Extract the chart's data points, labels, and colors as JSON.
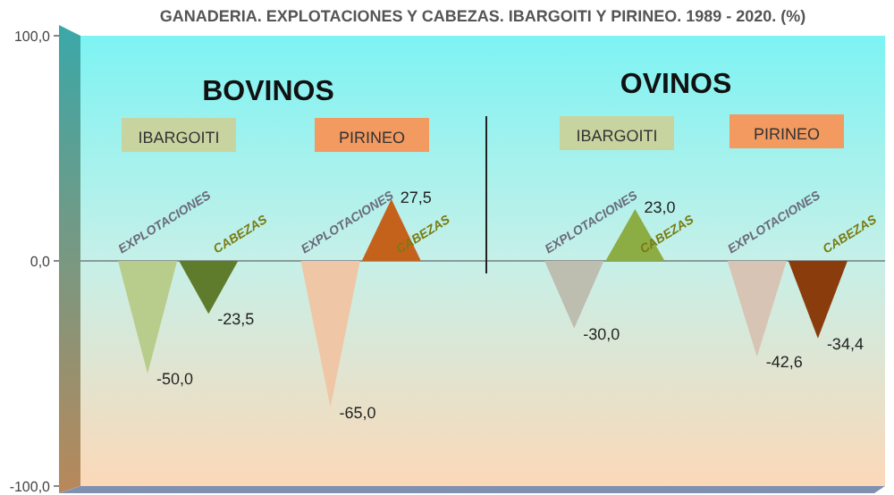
{
  "chart_data": {
    "type": "bar",
    "title": "GANADERIA. EXPLOTACIONES Y CABEZAS. IBARGOITI Y PIRINEO. 1989 - 2020. (%)",
    "categories": [
      "EXPLOTACIONES",
      "CABEZAS",
      null,
      "EXPLOTACIONES",
      "CABEZAS",
      null,
      null,
      "EXPLOTACIONES",
      "CABEZAS",
      null,
      "EXPLOTACIONES",
      "CABEZAS"
    ],
    "values": [
      -50.0,
      -23.5,
      null,
      -65.0,
      27.5,
      null,
      null,
      -30.0,
      23.0,
      null,
      -42.6,
      -34.4
    ],
    "colors": [
      "#b8cc8c",
      "#5e7c2c",
      null,
      "#efc6a6",
      "#c4621c",
      null,
      null,
      "#bdbdb0",
      "#8cac44",
      null,
      "#d8c4b4",
      "#8a3c0c"
    ],
    "value_labels": [
      "-50,0",
      "-23,5",
      null,
      "-65,0",
      "27,5",
      null,
      null,
      "-30,0",
      "23,0",
      null,
      "-42,6",
      "-34,4"
    ],
    "ylim": [
      -100,
      100
    ],
    "yticks": [
      {
        "value": -100,
        "label": "-100,0"
      },
      {
        "value": 0,
        "label": "0,0"
      },
      {
        "value": 100,
        "label": "100,0"
      }
    ],
    "annotations": [
      "BOVINOS",
      "OVINOS",
      "IBARGOITI",
      "PIRINEO",
      "IBARGOITI",
      "PIRINEO"
    ]
  }
}
